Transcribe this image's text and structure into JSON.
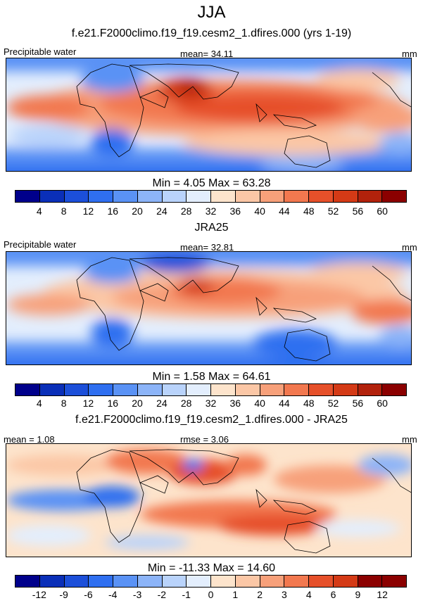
{
  "title": "JJA",
  "panel1": {
    "title": "f.e21.F2000climo.f19_f19.cesm2_1.dfires.000 (yrs 1-19)",
    "left_label": "Precipitable water",
    "center_label": "mean=  34.11",
    "units": "mm",
    "minmax": "Min =   4.05 Max =  63.28"
  },
  "panel2": {
    "title": "JRA25",
    "left_label": "Precipitable water",
    "center_label": "mean=  32.81",
    "units": "mm",
    "minmax": "Min =   1.58 Max =  64.61"
  },
  "panel3": {
    "title": "f.e21.F2000climo.f19_f19.cesm2_1.dfires.000 - JRA25",
    "left_label": "mean =   1.08",
    "center_label": "rmse =   3.06",
    "units": "mm",
    "minmax": "Min = -11.33 Max =  14.60"
  },
  "colors": {
    "abs_scale": [
      "#00008b",
      "#0a2fb8",
      "#1c4fd9",
      "#2f6ff0",
      "#5a92f5",
      "#8cb4f8",
      "#b9d3fb",
      "#e3eefd",
      "#fde4cc",
      "#fbc7a6",
      "#f7a07a",
      "#f2784f",
      "#e6502a",
      "#d43a16",
      "#b2220c",
      "#8b0000"
    ],
    "diff_scale": [
      "#00008b",
      "#0a2fb8",
      "#1c4fd9",
      "#2f6ff0",
      "#5a92f5",
      "#8cb4f8",
      "#b9d3fb",
      "#e3eefd",
      "#fde4cc",
      "#fbc7a6",
      "#f7a07a",
      "#f2784f",
      "#e6502a",
      "#d43a16",
      "#8b0000"
    ]
  },
  "chart_data": [
    {
      "type": "heatmap",
      "title": "f.e21.F2000climo.f19_f19.cesm2_1.dfires.000 (yrs 1-19)",
      "variable": "Precipitable water",
      "units": "mm",
      "mean": 34.11,
      "min": 4.05,
      "max": 63.28,
      "colorbar_levels": [
        "4",
        "8",
        "12",
        "16",
        "20",
        "24",
        "28",
        "32",
        "36",
        "40",
        "44",
        "48",
        "52",
        "56",
        "60"
      ]
    },
    {
      "type": "heatmap",
      "title": "JRA25",
      "variable": "Precipitable water",
      "units": "mm",
      "mean": 32.81,
      "min": 1.58,
      "max": 64.61,
      "colorbar_levels": [
        "4",
        "8",
        "12",
        "16",
        "20",
        "24",
        "28",
        "32",
        "36",
        "40",
        "44",
        "48",
        "52",
        "56",
        "60"
      ]
    },
    {
      "type": "heatmap",
      "title": "f.e21.F2000climo.f19_f19.cesm2_1.dfires.000 - JRA25",
      "variable": "difference",
      "units": "mm",
      "mean": 1.08,
      "rmse": 3.06,
      "min": -11.33,
      "max": 14.6,
      "colorbar_levels": [
        "-12",
        "-9",
        "-6",
        "-4",
        "-3",
        "-2",
        "-1",
        "0",
        "1",
        "2",
        "3",
        "4",
        "6",
        "9",
        "12"
      ]
    }
  ]
}
